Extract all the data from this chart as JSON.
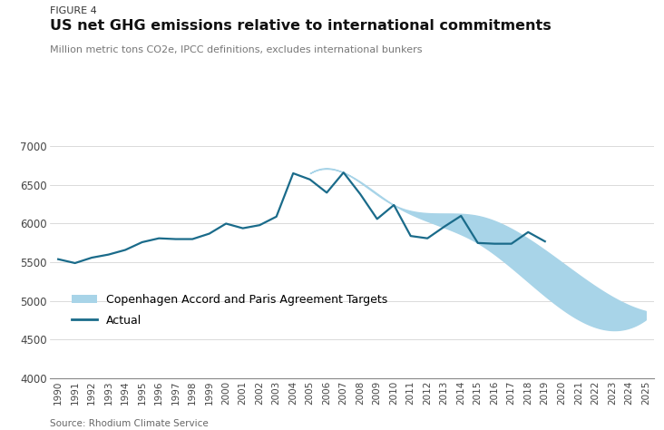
{
  "figure_label": "FIGURE 4",
  "title": "US net GHG emissions relative to international commitments",
  "subtitle": "Million metric tons CO2e, IPCC definitions, excludes international bunkers",
  "source": "Source: Rhodium Climate Service",
  "actual_years": [
    1990,
    1991,
    1992,
    1993,
    1994,
    1995,
    1996,
    1997,
    1998,
    1999,
    2000,
    2001,
    2002,
    2003,
    2004,
    2005,
    2006,
    2007,
    2008,
    2009,
    2010,
    2011,
    2012,
    2013,
    2014,
    2015,
    2016,
    2017,
    2018,
    2019
  ],
  "actual_values": [
    5540,
    5490,
    5560,
    5600,
    5660,
    5760,
    5810,
    5800,
    5800,
    5870,
    6000,
    5940,
    5980,
    6090,
    6650,
    6570,
    6400,
    6660,
    6380,
    6060,
    6240,
    5840,
    5810,
    5960,
    6100,
    5750,
    5740,
    5740,
    5890,
    5770
  ],
  "target_upper_years": [
    2005,
    2007,
    2010,
    2015,
    2020,
    2025
  ],
  "target_upper_vals": [
    6650,
    6660,
    6240,
    6100,
    5500,
    4870
  ],
  "target_lower_years": [
    2005,
    2007,
    2010,
    2015,
    2020,
    2025
  ],
  "target_lower_vals": [
    6650,
    6660,
    6240,
    5750,
    4900,
    4760
  ],
  "actual_color": "#1a6b8a",
  "target_fill_color": "#a8d4e8",
  "ylim": [
    4000,
    7000
  ],
  "yticks": [
    4000,
    4500,
    5000,
    5500,
    6000,
    6500,
    7000
  ],
  "xlim_min": 1990,
  "xlim_max": 2025
}
